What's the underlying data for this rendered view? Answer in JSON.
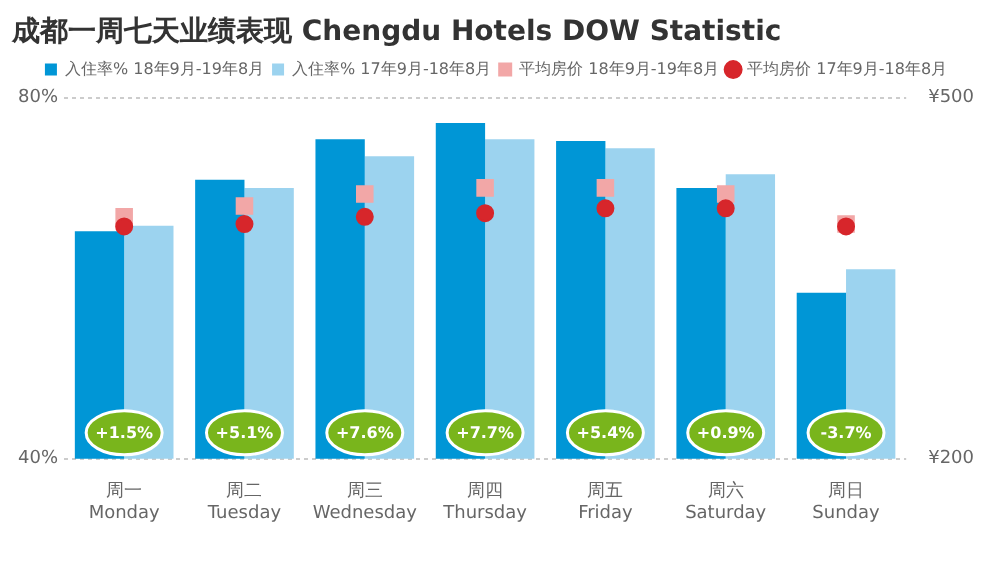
{
  "chart_data": {
    "type": "bar",
    "title": "成都一周七天业绩表现 Chengdu Hotels DOW Statistic",
    "categories": [
      "周一\nMonday",
      "周二\nTuesday",
      "周三\nWednesday",
      "周四\nThursday",
      "周五\nFriday",
      "周六\nSaturday",
      "周日\nSunday"
    ],
    "series": [
      {
        "name": "入住率% 18年9月-19年8月",
        "color": "#0096d6",
        "values": [
          65.2,
          70.9,
          75.4,
          77.2,
          75.2,
          70.0,
          58.4
        ]
      },
      {
        "name": "入住率% 17年9月-18年8月",
        "color": "#9cd3ef",
        "values": [
          65.8,
          70.0,
          73.5,
          75.4,
          74.4,
          71.5,
          61.0
        ]
      },
      {
        "name": "平均房价 18年9月-19年8月",
        "type": "scatter",
        "marker": "square",
        "axis": "y2",
        "color": "#f2a7a7",
        "values": [
          401,
          410,
          420,
          425,
          425,
          420,
          395
        ]
      },
      {
        "name": "平均房价 17年9月-18年8月",
        "type": "scatter",
        "marker": "circle",
        "axis": "y2",
        "color": "#d7262b",
        "values": [
          393,
          395,
          401,
          404,
          408,
          408,
          393
        ]
      }
    ],
    "ylim": [
      40,
      80
    ],
    "yticks": [
      {
        "value": 40,
        "label": "40%"
      },
      {
        "value": 80,
        "label": "80%"
      }
    ],
    "y2lim": [
      200,
      500
    ],
    "y2ticks": [
      {
        "value": 200,
        "label": "¥200"
      },
      {
        "value": 500,
        "label": "¥500"
      }
    ],
    "grid": "y",
    "legend": "top",
    "annotations": [
      {
        "text": "+1.5%",
        "x": "周一\nMonday"
      },
      {
        "text": "+5.1%",
        "x": "周二\nTuesday"
      },
      {
        "text": "+7.6%",
        "x": "周三\nWednesday"
      },
      {
        "text": "+7.7%",
        "x": "周四\nThursday"
      },
      {
        "text": "+5.4%",
        "x": "周五\nFriday"
      },
      {
        "text": "+0.9%",
        "x": "周六\nSaturday"
      },
      {
        "text": "-3.7%",
        "x": "周日\nSunday"
      }
    ]
  }
}
